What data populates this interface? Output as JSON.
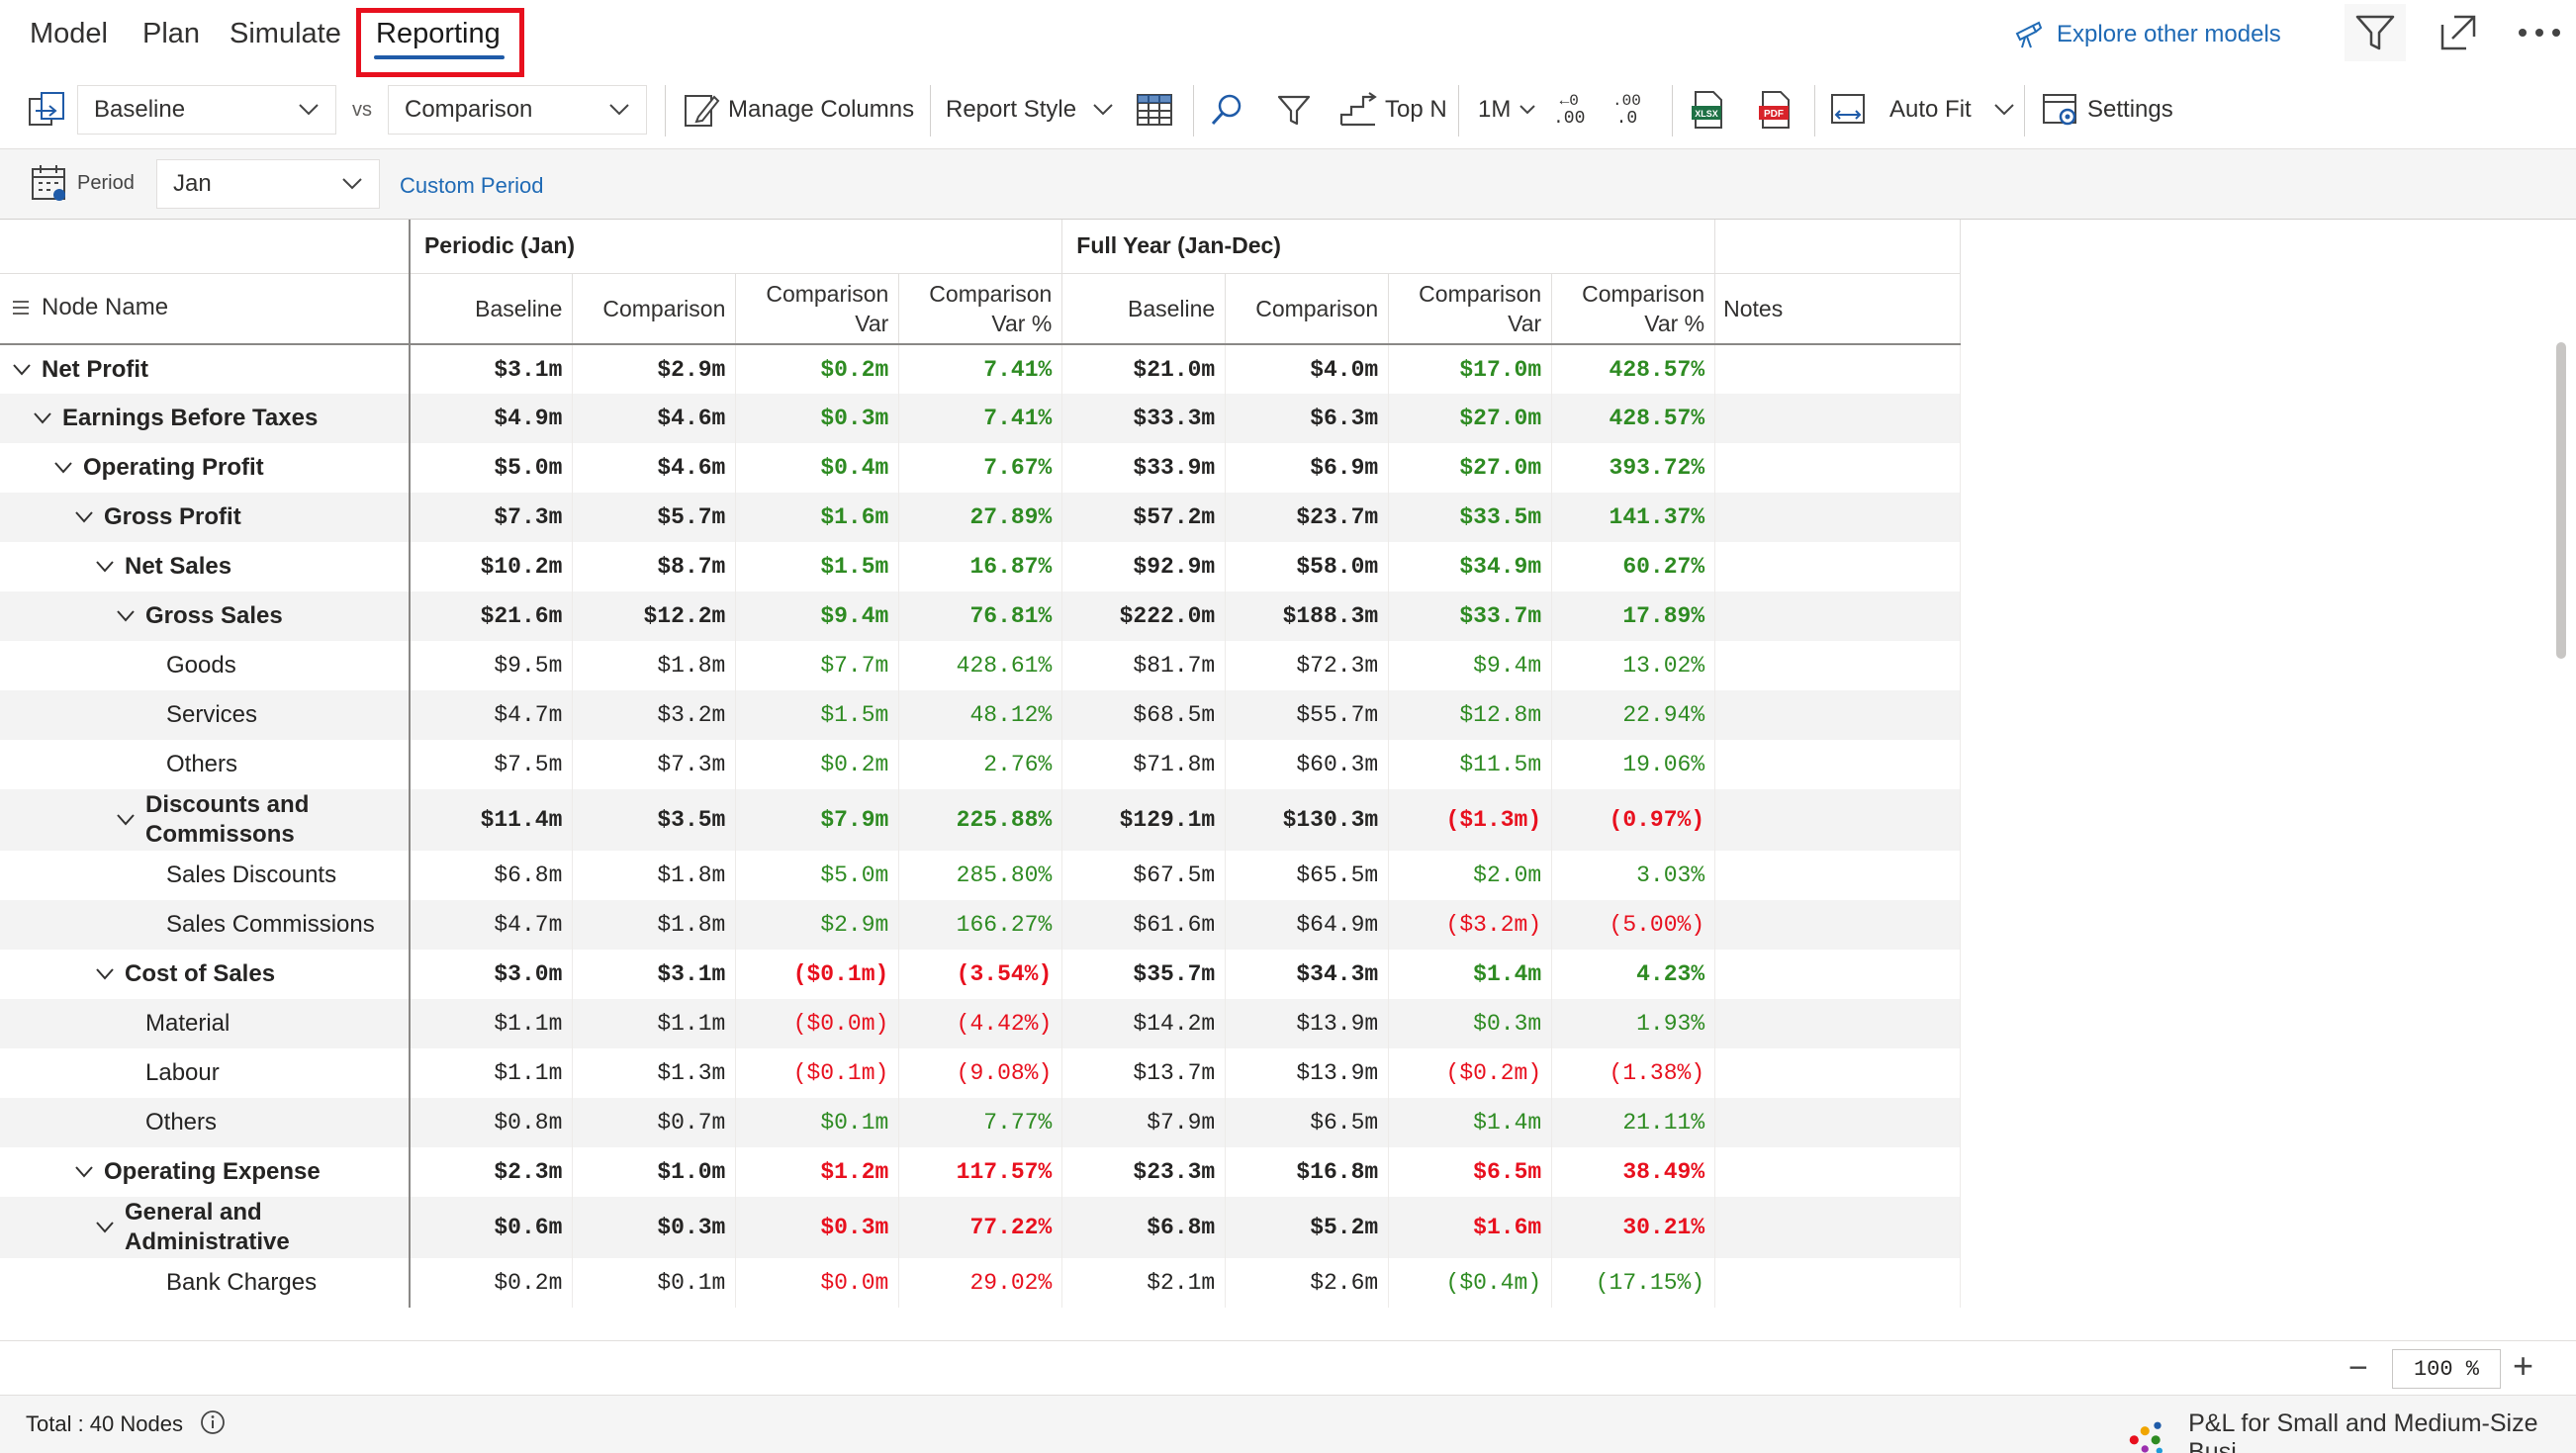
{
  "tabs": {
    "model": "Model",
    "plan": "Plan",
    "simulate": "Simulate",
    "reporting": "Reporting"
  },
  "explore_link": "Explore other models",
  "toolbar": {
    "baseline": "Baseline",
    "vs": "vs",
    "comparison": "Comparison",
    "manage_columns": "Manage Columns",
    "report_style": "Report Style",
    "top_n": "Top N",
    "scale": "1M",
    "dec_inc": ".00",
    "dec_dec": ".0",
    "auto_fit": "Auto Fit",
    "settings": "Settings"
  },
  "period": {
    "label": "Period",
    "value": "Jan",
    "custom": "Custom Period"
  },
  "grid": {
    "node_name_header": "Node Name",
    "group_periodic": "Periodic (Jan)",
    "group_fullyear": "Full Year (Jan-Dec)",
    "col_baseline": "Baseline",
    "col_comparison": "Comparison",
    "col_var_l1": "Comparison",
    "col_var_l2": "Var",
    "col_varpct_l1": "Comparison",
    "col_varpct_l2": "Var %",
    "col_notes": "Notes",
    "rows": [
      {
        "name": "Net Profit",
        "level": 0,
        "expandable": true,
        "bold": true,
        "v": [
          "$3.1m",
          "$2.9m",
          "$0.2m",
          "7.41%",
          "$21.0m",
          "$4.0m",
          "$17.0m",
          "428.57%"
        ],
        "c": [
          "pos",
          "pos",
          "pos",
          "pos"
        ]
      },
      {
        "name": "Earnings Before Taxes",
        "level": 1,
        "expandable": true,
        "bold": true,
        "v": [
          "$4.9m",
          "$4.6m",
          "$0.3m",
          "7.41%",
          "$33.3m",
          "$6.3m",
          "$27.0m",
          "428.57%"
        ],
        "c": [
          "pos",
          "pos",
          "pos",
          "pos"
        ]
      },
      {
        "name": "Operating Profit",
        "level": 2,
        "expandable": true,
        "bold": true,
        "v": [
          "$5.0m",
          "$4.6m",
          "$0.4m",
          "7.67%",
          "$33.9m",
          "$6.9m",
          "$27.0m",
          "393.72%"
        ],
        "c": [
          "pos",
          "pos",
          "pos",
          "pos"
        ]
      },
      {
        "name": "Gross Profit",
        "level": 3,
        "expandable": true,
        "bold": true,
        "v": [
          "$7.3m",
          "$5.7m",
          "$1.6m",
          "27.89%",
          "$57.2m",
          "$23.7m",
          "$33.5m",
          "141.37%"
        ],
        "c": [
          "pos",
          "pos",
          "pos",
          "pos"
        ]
      },
      {
        "name": "Net Sales",
        "level": 4,
        "expandable": true,
        "bold": true,
        "v": [
          "$10.2m",
          "$8.7m",
          "$1.5m",
          "16.87%",
          "$92.9m",
          "$58.0m",
          "$34.9m",
          "60.27%"
        ],
        "c": [
          "pos",
          "pos",
          "pos",
          "pos"
        ]
      },
      {
        "name": "Gross Sales",
        "level": 5,
        "expandable": true,
        "bold": true,
        "v": [
          "$21.6m",
          "$12.2m",
          "$9.4m",
          "76.81%",
          "$222.0m",
          "$188.3m",
          "$33.7m",
          "17.89%"
        ],
        "c": [
          "pos",
          "pos",
          "pos",
          "pos"
        ]
      },
      {
        "name": "Goods",
        "level": 6,
        "expandable": false,
        "bold": false,
        "v": [
          "$9.5m",
          "$1.8m",
          "$7.7m",
          "428.61%",
          "$81.7m",
          "$72.3m",
          "$9.4m",
          "13.02%"
        ],
        "c": [
          "pos",
          "pos",
          "pos",
          "pos"
        ]
      },
      {
        "name": "Services",
        "level": 6,
        "expandable": false,
        "bold": false,
        "v": [
          "$4.7m",
          "$3.2m",
          "$1.5m",
          "48.12%",
          "$68.5m",
          "$55.7m",
          "$12.8m",
          "22.94%"
        ],
        "c": [
          "pos",
          "pos",
          "pos",
          "pos"
        ]
      },
      {
        "name": "Others",
        "level": 6,
        "expandable": false,
        "bold": false,
        "v": [
          "$7.5m",
          "$7.3m",
          "$0.2m",
          "2.76%",
          "$71.8m",
          "$60.3m",
          "$11.5m",
          "19.06%"
        ],
        "c": [
          "pos",
          "pos",
          "pos",
          "pos"
        ]
      },
      {
        "name": "Discounts and Commissons",
        "level": 5,
        "expandable": true,
        "bold": true,
        "tall": true,
        "v": [
          "$11.4m",
          "$3.5m",
          "$7.9m",
          "225.88%",
          "$129.1m",
          "$130.3m",
          "($1.3m)",
          "(0.97%)"
        ],
        "c": [
          "pos",
          "pos",
          "neg",
          "neg"
        ]
      },
      {
        "name": "Sales Discounts",
        "level": 6,
        "expandable": false,
        "bold": false,
        "v": [
          "$6.8m",
          "$1.8m",
          "$5.0m",
          "285.80%",
          "$67.5m",
          "$65.5m",
          "$2.0m",
          "3.03%"
        ],
        "c": [
          "pos",
          "pos",
          "pos",
          "pos"
        ]
      },
      {
        "name": "Sales Commissions",
        "level": 6,
        "expandable": false,
        "bold": false,
        "v": [
          "$4.7m",
          "$1.8m",
          "$2.9m",
          "166.27%",
          "$61.6m",
          "$64.9m",
          "($3.2m)",
          "(5.00%)"
        ],
        "c": [
          "pos",
          "pos",
          "neg",
          "neg"
        ]
      },
      {
        "name": "Cost of Sales",
        "level": 4,
        "expandable": true,
        "bold": true,
        "v": [
          "$3.0m",
          "$3.1m",
          "($0.1m)",
          "(3.54%)",
          "$35.7m",
          "$34.3m",
          "$1.4m",
          "4.23%"
        ],
        "c": [
          "neg",
          "neg",
          "pos",
          "pos"
        ]
      },
      {
        "name": "Material",
        "level": 5,
        "expandable": false,
        "bold": false,
        "v": [
          "$1.1m",
          "$1.1m",
          "($0.0m)",
          "(4.42%)",
          "$14.2m",
          "$13.9m",
          "$0.3m",
          "1.93%"
        ],
        "c": [
          "neg",
          "neg",
          "pos",
          "pos"
        ]
      },
      {
        "name": "Labour",
        "level": 5,
        "expandable": false,
        "bold": false,
        "v": [
          "$1.1m",
          "$1.3m",
          "($0.1m)",
          "(9.08%)",
          "$13.7m",
          "$13.9m",
          "($0.2m)",
          "(1.38%)"
        ],
        "c": [
          "neg",
          "neg",
          "neg",
          "neg"
        ]
      },
      {
        "name": "Others",
        "level": 5,
        "expandable": false,
        "bold": false,
        "v": [
          "$0.8m",
          "$0.7m",
          "$0.1m",
          "7.77%",
          "$7.9m",
          "$6.5m",
          "$1.4m",
          "21.11%"
        ],
        "c": [
          "pos",
          "pos",
          "pos",
          "pos"
        ]
      },
      {
        "name": "Operating Expense",
        "level": 3,
        "expandable": true,
        "bold": true,
        "v": [
          "$2.3m",
          "$1.0m",
          "$1.2m",
          "117.57%",
          "$23.3m",
          "$16.8m",
          "$6.5m",
          "38.49%"
        ],
        "c": [
          "neg",
          "neg",
          "neg",
          "neg"
        ]
      },
      {
        "name": "General and Administrative",
        "level": 4,
        "expandable": true,
        "bold": true,
        "tall": true,
        "v": [
          "$0.6m",
          "$0.3m",
          "$0.3m",
          "77.22%",
          "$6.8m",
          "$5.2m",
          "$1.6m",
          "30.21%"
        ],
        "c": [
          "neg",
          "neg",
          "neg",
          "neg"
        ]
      },
      {
        "name": "Bank Charges",
        "level": 6,
        "expandable": false,
        "bold": false,
        "v": [
          "$0.2m",
          "$0.1m",
          "$0.0m",
          "29.02%",
          "$2.1m",
          "$2.6m",
          "($0.4m)",
          "(17.15%)"
        ],
        "c": [
          "neg",
          "neg",
          "pos",
          "pos"
        ]
      }
    ]
  },
  "zoom": {
    "minus": "−",
    "value": "100 %",
    "plus": "+"
  },
  "status": {
    "total": "Total : 40 Nodes",
    "model_name": "P&L for Small and Medium-Size Busi..."
  },
  "colors": {
    "positive": "#2e8b22",
    "negative": "#e8101e",
    "accent": "#1f5ba8",
    "highlight": "#e8101e"
  }
}
